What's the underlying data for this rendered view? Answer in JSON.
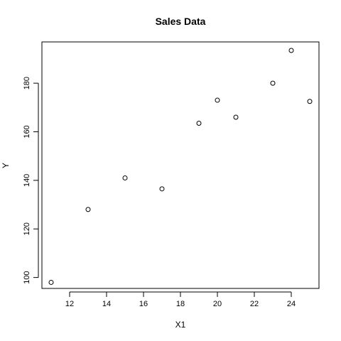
{
  "chart_data": {
    "type": "scatter",
    "title": "Sales Data",
    "xlabel": "X1",
    "ylabel": "Y",
    "x": [
      11,
      13,
      15,
      17,
      19,
      20,
      21,
      23,
      24,
      25
    ],
    "y": [
      98,
      128,
      141,
      136.5,
      163.5,
      173,
      166,
      180,
      193.5,
      172.5
    ],
    "xlim": [
      10.5,
      25.5
    ],
    "ylim": [
      95.5,
      197
    ],
    "xticks": [
      12,
      14,
      16,
      18,
      20,
      22,
      24
    ],
    "yticks": [
      100,
      120,
      140,
      160,
      180
    ],
    "grid": false,
    "marker": "open-circle"
  }
}
